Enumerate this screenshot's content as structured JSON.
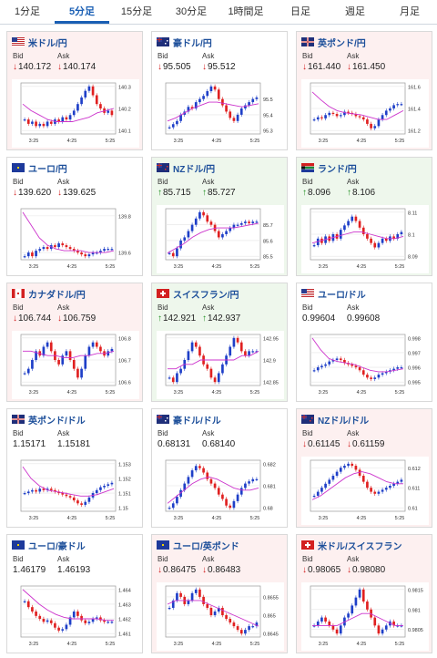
{
  "tabs": [
    {
      "label": "1分足",
      "active": false
    },
    {
      "label": "5分足",
      "active": true
    },
    {
      "label": "15分足",
      "active": false
    },
    {
      "label": "30分足",
      "active": false
    },
    {
      "label": "1時間足",
      "active": false
    },
    {
      "label": "日足",
      "active": false
    },
    {
      "label": "週足",
      "active": false
    },
    {
      "label": "月足",
      "active": false
    }
  ],
  "labels": {
    "bid": "Bid",
    "ask": "Ask"
  },
  "colors": {
    "pink_bg": "#fdf0f0",
    "green_bg": "#eef7ec",
    "down": "#d32020",
    "up": "#209020",
    "bull": "#1e3fc8",
    "bear": "#e02020",
    "ma": "#cc33cc",
    "link": "#1d4f9a"
  },
  "cards": [
    {
      "name": "米ドル/円",
      "flag": "us",
      "bg": "pink",
      "bid": "140.172",
      "ask": "140.174",
      "bid_dir": "down",
      "ask_dir": "down",
      "yticks": [
        "140.3",
        "140.2",
        "140.1"
      ],
      "xticks": [
        "3:25",
        "4:25",
        "5:25"
      ],
      "series": [
        140.15,
        140.13,
        140.14,
        140.12,
        140.13,
        140.12,
        140.14,
        140.13,
        140.15,
        140.14,
        140.16,
        140.15,
        140.17,
        140.19,
        140.22,
        140.25,
        140.28,
        140.3,
        140.26,
        140.22,
        140.2,
        140.18,
        140.19,
        140.17
      ],
      "ma": [
        140.22,
        140.19,
        140.17,
        140.15,
        140.14,
        140.14,
        140.14,
        140.15,
        140.16,
        140.18,
        140.19,
        140.2
      ]
    },
    {
      "name": "豪ドル/円",
      "flag": "au",
      "bg": "white",
      "bid": "95.505",
      "ask": "95.512",
      "bid_dir": "down",
      "ask_dir": "down",
      "yticks": [
        "95.5",
        "95.4",
        "95.3"
      ],
      "xticks": [
        "3:25",
        "4:25",
        "5:25"
      ],
      "series": [
        95.32,
        95.34,
        95.36,
        95.4,
        95.42,
        95.45,
        95.44,
        95.48,
        95.5,
        95.52,
        95.55,
        95.58,
        95.56,
        95.5,
        95.46,
        95.42,
        95.38,
        95.36,
        95.4,
        95.44,
        95.46,
        95.48,
        95.5,
        95.51
      ],
      "ma": [
        95.36,
        95.38,
        95.41,
        95.44,
        95.46,
        95.48,
        95.48,
        95.47,
        95.46,
        95.45,
        95.46,
        95.47
      ]
    },
    {
      "name": "英ポンド/円",
      "flag": "uk",
      "bg": "pink",
      "bid": "161.440",
      "ask": "161.450",
      "bid_dir": "down",
      "ask_dir": "down",
      "yticks": [
        "161.6",
        "161.4",
        "161.2"
      ],
      "xticks": [
        "3:25",
        "4:25",
        "5:25"
      ],
      "series": [
        161.3,
        161.32,
        161.31,
        161.34,
        161.36,
        161.35,
        161.33,
        161.34,
        161.37,
        161.36,
        161.35,
        161.33,
        161.32,
        161.3,
        161.26,
        161.22,
        161.24,
        161.3,
        161.34,
        161.38,
        161.4,
        161.43,
        161.44,
        161.44
      ],
      "ma": [
        161.55,
        161.48,
        161.42,
        161.38,
        161.36,
        161.35,
        161.34,
        161.32,
        161.3,
        161.3,
        161.34,
        161.38
      ]
    },
    {
      "name": "ユーロ/円",
      "flag": "eu",
      "bg": "white",
      "bid": "139.620",
      "ask": "139.625",
      "bid_dir": "down",
      "ask_dir": "down",
      "yticks": [
        "139.8",
        "139.6"
      ],
      "xticks": [
        "3:25",
        "4:25",
        "5:25"
      ],
      "series": [
        139.58,
        139.6,
        139.58,
        139.61,
        139.62,
        139.63,
        139.62,
        139.64,
        139.63,
        139.65,
        139.64,
        139.63,
        139.62,
        139.61,
        139.6,
        139.59,
        139.58,
        139.59,
        139.6,
        139.6,
        139.61,
        139.62,
        139.62,
        139.62
      ],
      "ma": [
        139.82,
        139.75,
        139.68,
        139.64,
        139.62,
        139.61,
        139.61,
        139.61,
        139.6,
        139.6,
        139.6,
        139.61
      ]
    },
    {
      "name": "NZドル/円",
      "flag": "nz",
      "bg": "green",
      "bid": "85.715",
      "ask": "85.727",
      "bid_dir": "up",
      "ask_dir": "up",
      "yticks": [
        "85.7",
        "85.6",
        "85.5"
      ],
      "xticks": [
        "3:25",
        "4:25",
        "5:25"
      ],
      "series": [
        85.52,
        85.5,
        85.55,
        85.6,
        85.62,
        85.66,
        85.7,
        85.74,
        85.78,
        85.76,
        85.72,
        85.7,
        85.66,
        85.62,
        85.64,
        85.66,
        85.68,
        85.7,
        85.7,
        85.71,
        85.72,
        85.71,
        85.72,
        85.72
      ],
      "ma": [
        85.52,
        85.55,
        85.58,
        85.62,
        85.65,
        85.67,
        85.68,
        85.68,
        85.68,
        85.69,
        85.7,
        85.71
      ]
    },
    {
      "name": "ランド/円",
      "flag": "za",
      "bg": "green",
      "bid": "8.096",
      "ask": "8.106",
      "bid_dir": "up",
      "ask_dir": "up",
      "yticks": [
        "8.11",
        "8.1",
        "8.09"
      ],
      "xticks": [
        "3:25",
        "4:25",
        "5:25"
      ],
      "series": [
        8.095,
        8.098,
        8.096,
        8.099,
        8.097,
        8.1,
        8.098,
        8.102,
        8.104,
        8.106,
        8.108,
        8.106,
        8.103,
        8.1,
        8.098,
        8.096,
        8.094,
        8.096,
        8.098,
        8.097,
        8.099,
        8.098,
        8.1,
        8.101
      ],
      "ma": [
        8.096,
        8.097,
        8.098,
        8.099,
        8.1,
        8.101,
        8.101,
        8.1,
        8.099,
        8.098,
        8.098,
        8.099
      ]
    },
    {
      "name": "カナダドル/円",
      "flag": "ca",
      "bg": "pink",
      "bid": "106.744",
      "ask": "106.759",
      "bid_dir": "down",
      "ask_dir": "down",
      "yticks": [
        "106.8",
        "106.7",
        "106.6"
      ],
      "xticks": [
        "3:25",
        "4:25",
        "5:25"
      ],
      "series": [
        106.64,
        106.66,
        106.7,
        106.74,
        106.72,
        106.76,
        106.78,
        106.74,
        106.7,
        106.68,
        106.72,
        106.74,
        106.7,
        106.66,
        106.62,
        106.66,
        106.72,
        106.76,
        106.78,
        106.76,
        106.74,
        106.72,
        106.74,
        106.75
      ],
      "ma": [
        106.74,
        106.74,
        106.73,
        106.72,
        106.72,
        106.71,
        106.71,
        106.72,
        106.72,
        106.73,
        106.73,
        106.74
      ]
    },
    {
      "name": "スイスフラン/円",
      "flag": "ch",
      "bg": "green",
      "bid": "142.921",
      "ask": "142.937",
      "bid_dir": "up",
      "ask_dir": "up",
      "yticks": [
        "142.95",
        "142.9",
        "142.85"
      ],
      "xticks": [
        "3:25",
        "4:25",
        "5:25"
      ],
      "series": [
        142.86,
        142.85,
        142.87,
        142.88,
        142.9,
        142.92,
        142.94,
        142.93,
        142.91,
        142.89,
        142.88,
        142.86,
        142.85,
        142.87,
        142.89,
        142.91,
        142.93,
        142.95,
        142.94,
        142.92,
        142.91,
        142.92,
        142.92,
        142.92
      ],
      "ma": [
        142.88,
        142.88,
        142.89,
        142.89,
        142.9,
        142.9,
        142.9,
        142.9,
        142.9,
        142.91,
        142.91,
        142.92
      ]
    },
    {
      "name": "ユーロ/ドル",
      "flag": "us",
      "bg": "white",
      "bid": "0.99604",
      "ask": "0.99608",
      "bid_dir": "",
      "ask_dir": "",
      "yticks": [
        "0.998",
        "0.997",
        "0.996",
        "0.995"
      ],
      "xticks": [
        "3:25",
        "4:25",
        "5:25"
      ],
      "series": [
        0.9958,
        0.996,
        0.9961,
        0.9962,
        0.9964,
        0.9965,
        0.9966,
        0.9965,
        0.9963,
        0.9962,
        0.9961,
        0.996,
        0.9958,
        0.9955,
        0.9953,
        0.9952,
        0.9953,
        0.9955,
        0.9956,
        0.9957,
        0.9958,
        0.9959,
        0.996,
        0.996
      ],
      "ma": [
        0.998,
        0.9972,
        0.9966,
        0.9964,
        0.9963,
        0.9962,
        0.996,
        0.9958,
        0.9957,
        0.9957,
        0.9958,
        0.9959
      ]
    },
    {
      "name": "英ポンド/ドル",
      "flag": "uk",
      "bg": "white",
      "bid": "1.15171",
      "ask": "1.15181",
      "bid_dir": "",
      "ask_dir": "",
      "yticks": [
        "1.153",
        "1.152",
        "1.151",
        "1.15"
      ],
      "xticks": [
        "3:25",
        "4:25",
        "5:25"
      ],
      "series": [
        1.151,
        1.1511,
        1.1512,
        1.1511,
        1.1513,
        1.1512,
        1.1513,
        1.1512,
        1.1511,
        1.151,
        1.1509,
        1.1508,
        1.1507,
        1.1505,
        1.1503,
        1.1502,
        1.1504,
        1.1507,
        1.151,
        1.1512,
        1.1514,
        1.1515,
        1.1516,
        1.1517
      ],
      "ma": [
        1.1528,
        1.152,
        1.1515,
        1.1512,
        1.1511,
        1.151,
        1.1509,
        1.1508,
        1.1508,
        1.1509,
        1.1511,
        1.1513
      ]
    },
    {
      "name": "豪ドル/ドル",
      "flag": "au",
      "bg": "white",
      "bid": "0.68131",
      "ask": "0.68140",
      "bid_dir": "",
      "ask_dir": "",
      "yticks": [
        "0.682",
        "0.681",
        "0.68"
      ],
      "xticks": [
        "3:25",
        "4:25",
        "5:25"
      ],
      "series": [
        0.68,
        0.6802,
        0.6805,
        0.6808,
        0.6811,
        0.6814,
        0.6817,
        0.6819,
        0.6818,
        0.6816,
        0.6813,
        0.6811,
        0.6809,
        0.6806,
        0.6804,
        0.6801,
        0.68,
        0.6803,
        0.6806,
        0.6809,
        0.6811,
        0.6812,
        0.6813,
        0.6813
      ],
      "ma": [
        0.6802,
        0.6805,
        0.6808,
        0.6811,
        0.6813,
        0.6814,
        0.6813,
        0.6811,
        0.6809,
        0.6808,
        0.6808,
        0.6809
      ]
    },
    {
      "name": "NZドル/ドル",
      "flag": "nz",
      "bg": "pink",
      "bid": "0.61145",
      "ask": "0.61159",
      "bid_dir": "down",
      "ask_dir": "down",
      "yticks": [
        "0.612",
        "0.611",
        "0.61"
      ],
      "xticks": [
        "3:25",
        "4:25",
        "5:25"
      ],
      "series": [
        0.6106,
        0.6108,
        0.611,
        0.6112,
        0.6114,
        0.6116,
        0.6118,
        0.612,
        0.6121,
        0.6122,
        0.6121,
        0.6119,
        0.6116,
        0.6113,
        0.611,
        0.6108,
        0.6107,
        0.6108,
        0.6109,
        0.611,
        0.6111,
        0.6112,
        0.6113,
        0.6114
      ],
      "ma": [
        0.6104,
        0.6106,
        0.6109,
        0.6112,
        0.6115,
        0.6117,
        0.6118,
        0.6117,
        0.6115,
        0.6113,
        0.6112,
        0.6112
      ]
    },
    {
      "name": "ユーロ/豪ドル",
      "flag": "eu",
      "bg": "white",
      "bid": "1.46179",
      "ask": "1.46193",
      "bid_dir": "",
      "ask_dir": "",
      "yticks": [
        "1.464",
        "1.463",
        "1.462",
        "1.461"
      ],
      "xticks": [
        "3:25",
        "4:25",
        "5:25"
      ],
      "series": [
        1.4632,
        1.4628,
        1.4625,
        1.4622,
        1.462,
        1.4618,
        1.4619,
        1.4617,
        1.4614,
        1.4612,
        1.4613,
        1.4616,
        1.4621,
        1.4625,
        1.4622,
        1.4619,
        1.4617,
        1.4618,
        1.462,
        1.4621,
        1.4619,
        1.4618,
        1.4618,
        1.4618
      ],
      "ma": [
        1.464,
        1.4635,
        1.463,
        1.4626,
        1.4623,
        1.4621,
        1.462,
        1.462,
        1.462,
        1.462,
        1.4619,
        1.4619
      ]
    },
    {
      "name": "ユーロ/英ポンド",
      "flag": "eu",
      "bg": "pink",
      "bid": "0.86475",
      "ask": "0.86483",
      "bid_dir": "down",
      "ask_dir": "down",
      "yticks": [
        "0.8655",
        "0.865",
        "0.8645"
      ],
      "xticks": [
        "3:25",
        "4:25",
        "5:25"
      ],
      "series": [
        0.8652,
        0.8654,
        0.8656,
        0.8655,
        0.8653,
        0.8654,
        0.8656,
        0.8657,
        0.8655,
        0.8653,
        0.8652,
        0.865,
        0.8651,
        0.8652,
        0.865,
        0.8649,
        0.8648,
        0.8647,
        0.8646,
        0.8645,
        0.8646,
        0.8647,
        0.8647,
        0.8648
      ],
      "ma": [
        0.8653,
        0.8654,
        0.8654,
        0.8654,
        0.8654,
        0.8653,
        0.8652,
        0.8651,
        0.865,
        0.8649,
        0.8648,
        0.8647
      ]
    },
    {
      "name": "米ドル/スイスフラン",
      "flag": "ch",
      "bg": "pink",
      "bid": "0.98065",
      "ask": "0.98080",
      "bid_dir": "down",
      "ask_dir": "down",
      "yticks": [
        "0.9815",
        "0.981",
        "0.9805"
      ],
      "xticks": [
        "3:25",
        "4:25",
        "5:25"
      ],
      "series": [
        0.9806,
        0.9807,
        0.9808,
        0.9807,
        0.9806,
        0.9805,
        0.9804,
        0.9806,
        0.9808,
        0.9809,
        0.9811,
        0.9813,
        0.9815,
        0.9812,
        0.981,
        0.9808,
        0.9806,
        0.9804,
        0.9805,
        0.9806,
        0.9807,
        0.9806,
        0.9806,
        0.9806
      ],
      "ma": [
        0.9806,
        0.9806,
        0.9806,
        0.9806,
        0.9807,
        0.9808,
        0.9809,
        0.9809,
        0.9808,
        0.9807,
        0.9806,
        0.9806
      ]
    }
  ]
}
